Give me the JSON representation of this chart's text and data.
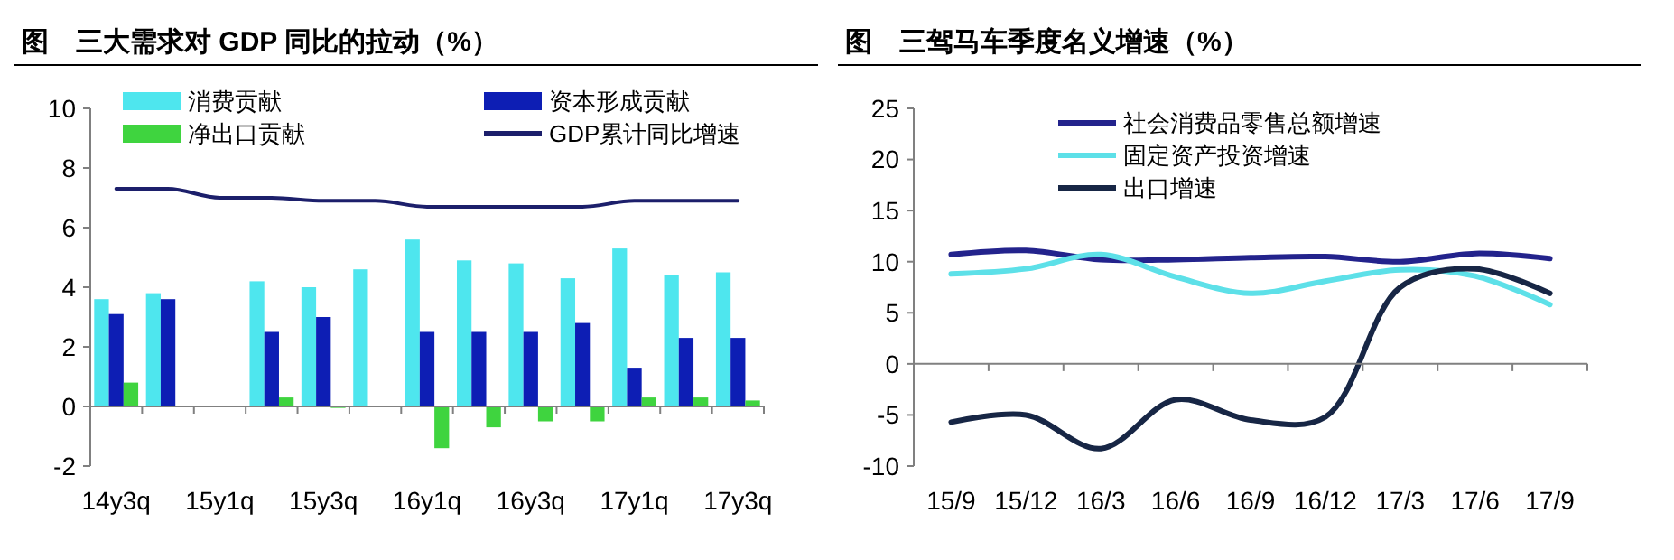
{
  "chart_data": [
    {
      "type": "bar",
      "title": "图　三大需求对 GDP 同比的拉动（%）",
      "categories": [
        "14y3q",
        null,
        "15y1q",
        null,
        "15y3q",
        null,
        "16y1q",
        null,
        "16y3q",
        null,
        "17y1q",
        null,
        "17y3q"
      ],
      "series": [
        {
          "name": "消费贡献",
          "color": "#4ee6ee",
          "values": [
            3.6,
            3.8,
            null,
            4.2,
            4.0,
            4.6,
            5.6,
            4.9,
            4.8,
            4.3,
            5.3,
            4.4,
            4.5
          ]
        },
        {
          "name": "资本形成贡献",
          "color": "#0d1eb4",
          "values": [
            3.1,
            3.6,
            null,
            2.5,
            3.0,
            null,
            2.5,
            2.5,
            2.5,
            2.8,
            1.3,
            2.3,
            2.3
          ]
        },
        {
          "name": "净出口贡献",
          "color": "#3fd43f",
          "values": [
            0.8,
            null,
            null,
            0.3,
            -0.05,
            null,
            -1.4,
            -0.7,
            -0.5,
            -0.5,
            0.3,
            0.3,
            0.2
          ]
        },
        {
          "name": "GDP累计同比增速",
          "type": "line",
          "color": "#1c1f6b",
          "values": [
            7.3,
            7.3,
            7.0,
            7.0,
            6.9,
            6.9,
            6.7,
            6.7,
            6.7,
            6.7,
            6.9,
            6.9,
            6.9
          ]
        }
      ],
      "ylim": [
        -2,
        10
      ],
      "yticks": [
        -2,
        0,
        2,
        4,
        6,
        8,
        10
      ],
      "legend": "top"
    },
    {
      "type": "line",
      "title": "图　三驾马车季度名义增速（%）",
      "categories": [
        "15/9",
        "15/12",
        "16/3",
        "16/6",
        "16/9",
        "16/12",
        "17/3",
        "17/6",
        "17/9"
      ],
      "series": [
        {
          "name": "社会消费品零售总额增速",
          "color": "#23238c",
          "values": [
            10.7,
            11.1,
            10.2,
            10.2,
            10.4,
            10.5,
            10.0,
            10.8,
            10.3
          ]
        },
        {
          "name": "固定资产投资增速",
          "color": "#5de0e8",
          "values": [
            8.8,
            9.3,
            10.7,
            8.5,
            6.9,
            8.1,
            9.2,
            8.6,
            5.8
          ]
        },
        {
          "name": "出口增速",
          "color": "#172645",
          "values": [
            -5.7,
            -5.0,
            -8.3,
            -3.5,
            -5.5,
            -5.2,
            7.5,
            9.3,
            6.9
          ]
        }
      ],
      "ylim": [
        -10,
        25
      ],
      "yticks": [
        -10,
        -5,
        0,
        5,
        10,
        15,
        20,
        25
      ],
      "legend": "top"
    }
  ]
}
